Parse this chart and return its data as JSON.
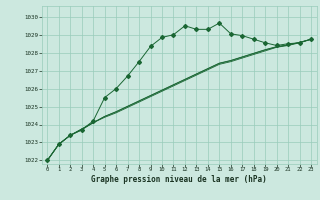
{
  "background_color": "#cce8df",
  "plot_bg_color": "#cce8df",
  "grid_color": "#99ccbb",
  "line_color": "#1a6633",
  "title": "Graphe pression niveau de la mer (hPa)",
  "xlim": [
    -0.5,
    23.5
  ],
  "ylim": [
    1021.8,
    1030.6
  ],
  "yticks": [
    1022,
    1023,
    1024,
    1025,
    1026,
    1027,
    1028,
    1029,
    1030
  ],
  "xticks": [
    0,
    1,
    2,
    3,
    4,
    5,
    6,
    7,
    8,
    9,
    10,
    11,
    12,
    13,
    14,
    15,
    16,
    17,
    18,
    19,
    20,
    21,
    22,
    23
  ],
  "series1_x": [
    0,
    1,
    2,
    3,
    4,
    5,
    6,
    7,
    8,
    9,
    10,
    11,
    12,
    13,
    14,
    15,
    16,
    17,
    18,
    19,
    20,
    21,
    22,
    23
  ],
  "series1_y": [
    1022.0,
    1022.9,
    1023.4,
    1023.7,
    1024.2,
    1025.5,
    1026.0,
    1026.7,
    1027.5,
    1028.35,
    1028.85,
    1029.0,
    1029.5,
    1029.3,
    1029.3,
    1029.65,
    1029.05,
    1028.95,
    1028.75,
    1028.55,
    1028.4,
    1028.5,
    1028.55,
    1028.75
  ],
  "series2_x": [
    0,
    1,
    2,
    3,
    4,
    5,
    6,
    7,
    8,
    9,
    10,
    11,
    12,
    13,
    14,
    15,
    16,
    17,
    18,
    19,
    20,
    21,
    22,
    23
  ],
  "series2_y": [
    1022.0,
    1022.9,
    1023.4,
    1023.7,
    1024.1,
    1024.4,
    1024.65,
    1024.95,
    1025.25,
    1025.55,
    1025.85,
    1026.15,
    1026.45,
    1026.75,
    1027.05,
    1027.35,
    1027.5,
    1027.7,
    1027.9,
    1028.1,
    1028.3,
    1028.4,
    1028.55,
    1028.75
  ],
  "series3_x": [
    0,
    1,
    2,
    3,
    4,
    5,
    6,
    7,
    8,
    9,
    10,
    11,
    12,
    13,
    14,
    15,
    16,
    17,
    18,
    19,
    20,
    21,
    22,
    23
  ],
  "series3_y": [
    1022.0,
    1022.9,
    1023.4,
    1023.75,
    1024.1,
    1024.45,
    1024.7,
    1025.0,
    1025.3,
    1025.6,
    1025.9,
    1026.2,
    1026.5,
    1026.8,
    1027.1,
    1027.4,
    1027.55,
    1027.75,
    1027.95,
    1028.15,
    1028.32,
    1028.43,
    1028.57,
    1028.75
  ],
  "series4_x": [
    0,
    1,
    2,
    3,
    4,
    5,
    6,
    7,
    8,
    9,
    10,
    11,
    12,
    13,
    14,
    15,
    16,
    17,
    18,
    19,
    20,
    21,
    22,
    23
  ],
  "series4_y": [
    1022.0,
    1022.9,
    1023.4,
    1023.75,
    1024.1,
    1024.45,
    1024.72,
    1025.02,
    1025.32,
    1025.62,
    1025.92,
    1026.22,
    1026.52,
    1026.82,
    1027.12,
    1027.42,
    1027.57,
    1027.77,
    1027.97,
    1028.17,
    1028.34,
    1028.44,
    1028.58,
    1028.75
  ]
}
